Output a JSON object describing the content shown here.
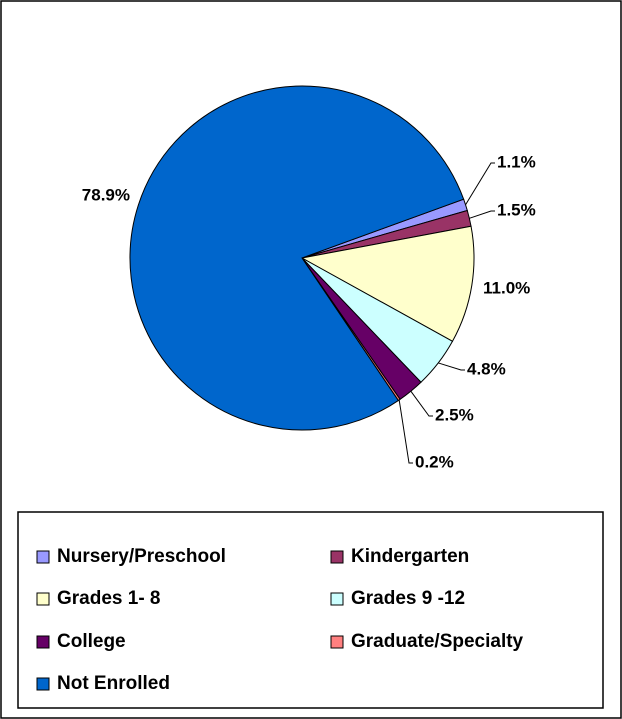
{
  "chart_data": {
    "type": "pie",
    "categories": [
      "Nursery/Preschool",
      "Kindergarten",
      "Grades 1- 8",
      "Grades 9 -12",
      "College",
      "Graduate/Specialty",
      "Not Enrolled"
    ],
    "values": [
      1.1,
      1.5,
      11.0,
      4.8,
      2.5,
      0.2,
      78.9
    ],
    "value_labels": [
      "1.1%",
      "1.5%",
      "11.0%",
      "4.8%",
      "2.5%",
      "0.2%",
      "78.9%"
    ],
    "colors": [
      "#9999ff",
      "#993366",
      "#ffffcc",
      "#ccffff",
      "#660066",
      "#ff8080",
      "#0066cc"
    ],
    "legend": "bottom"
  }
}
